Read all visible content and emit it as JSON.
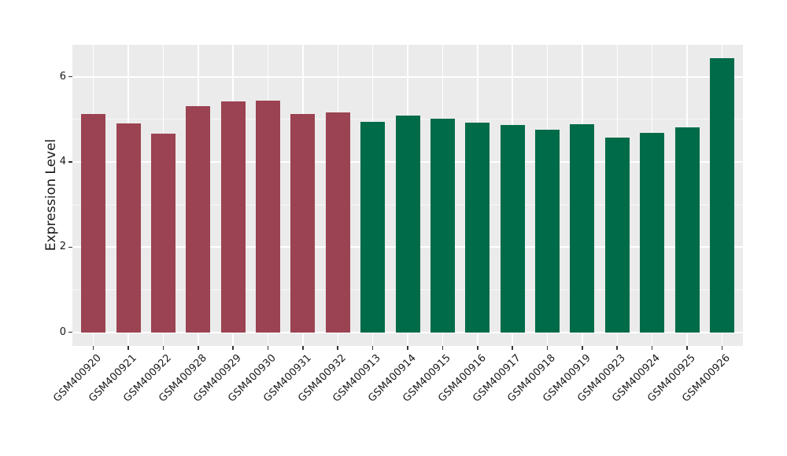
{
  "chart_data": {
    "type": "bar",
    "title": "",
    "xlabel": "",
    "ylabel": "Expression Level",
    "categories": [
      "GSM400920",
      "GSM400921",
      "GSM400922",
      "GSM400928",
      "GSM400929",
      "GSM400930",
      "GSM400931",
      "GSM400932",
      "GSM400913",
      "GSM400914",
      "GSM400915",
      "GSM400916",
      "GSM400917",
      "GSM400918",
      "GSM400919",
      "GSM400923",
      "GSM400924",
      "GSM400925",
      "GSM400926"
    ],
    "values": [
      5.12,
      4.91,
      4.66,
      5.3,
      5.42,
      5.44,
      5.13,
      5.16,
      4.94,
      5.08,
      5.02,
      4.92,
      4.87,
      4.75,
      4.88,
      4.57,
      4.69,
      4.81,
      6.44
    ],
    "bar_colors": [
      "#9B4352",
      "#9B4352",
      "#9B4352",
      "#9B4352",
      "#9B4352",
      "#9B4352",
      "#9B4352",
      "#9B4352",
      "#006B48",
      "#006B48",
      "#006B48",
      "#006B48",
      "#006B48",
      "#006B48",
      "#006B48",
      "#006B48",
      "#006B48",
      "#006B48",
      "#006B48"
    ],
    "ylim": [
      -0.32,
      6.75
    ],
    "yticks": [
      0,
      2,
      4,
      6
    ],
    "ytick_labels": [
      "0",
      "2",
      "4",
      "6"
    ],
    "yminor": [
      1,
      3,
      5
    ],
    "grid": "on",
    "legend": "none",
    "panel_bg": "#EBEBEB",
    "grid_color": "#FFFFFF",
    "bar_group_colors": {
      "left_group": "#9B4352",
      "right_group": "#006B48"
    }
  }
}
